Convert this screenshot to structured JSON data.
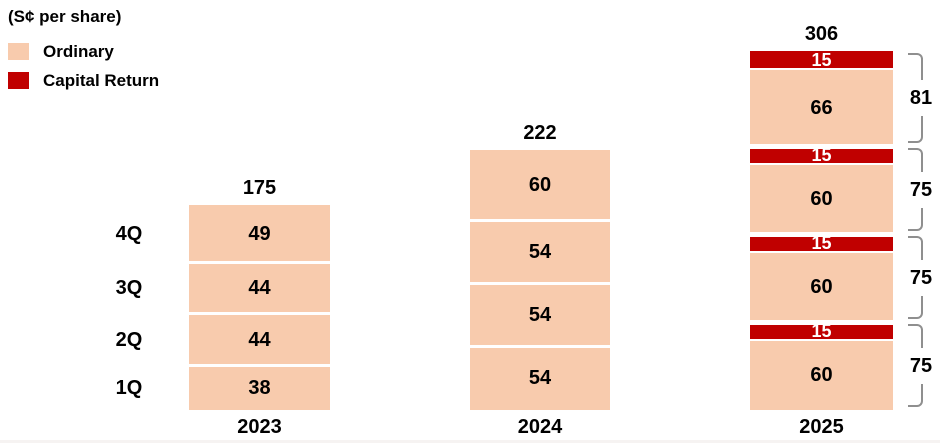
{
  "chart_data": {
    "type": "bar",
    "stacked": true,
    "title": "(S¢ per share)",
    "ylabel": "S¢ per share",
    "categories": [
      "2023",
      "2024",
      "2025"
    ],
    "totals": [
      175,
      222,
      306
    ],
    "grid": false,
    "legend_position": "top-left",
    "legend": [
      {
        "label": "Ordinary",
        "series": "ordinary",
        "color": "#F8CBAD"
      },
      {
        "label": "Capital Return",
        "series": "capital",
        "color": "#C00000"
      }
    ],
    "bars": [
      {
        "year": "2023",
        "total": 175,
        "quarter_labels_shown": true,
        "segments": [
          {
            "value": 38,
            "series": "ordinary",
            "quarter": "1Q"
          },
          {
            "value": 44,
            "series": "ordinary",
            "quarter": "2Q"
          },
          {
            "value": 44,
            "series": "ordinary",
            "quarter": "3Q"
          },
          {
            "value": 49,
            "series": "ordinary",
            "quarter": "4Q"
          }
        ]
      },
      {
        "year": "2024",
        "total": 222,
        "segments": [
          {
            "value": 54,
            "series": "ordinary"
          },
          {
            "value": 54,
            "series": "ordinary"
          },
          {
            "value": 54,
            "series": "ordinary"
          },
          {
            "value": 60,
            "series": "ordinary"
          }
        ]
      },
      {
        "year": "2025",
        "total": 306,
        "groups": [
          {
            "ordinary": 60,
            "capital": 15,
            "group_total": 75
          },
          {
            "ordinary": 60,
            "capital": 15,
            "group_total": 75
          },
          {
            "ordinary": 60,
            "capital": 15,
            "group_total": 75
          },
          {
            "ordinary": 66,
            "capital": 15,
            "group_total": 81
          }
        ]
      }
    ],
    "bracket_color": "#8f8f8f"
  }
}
